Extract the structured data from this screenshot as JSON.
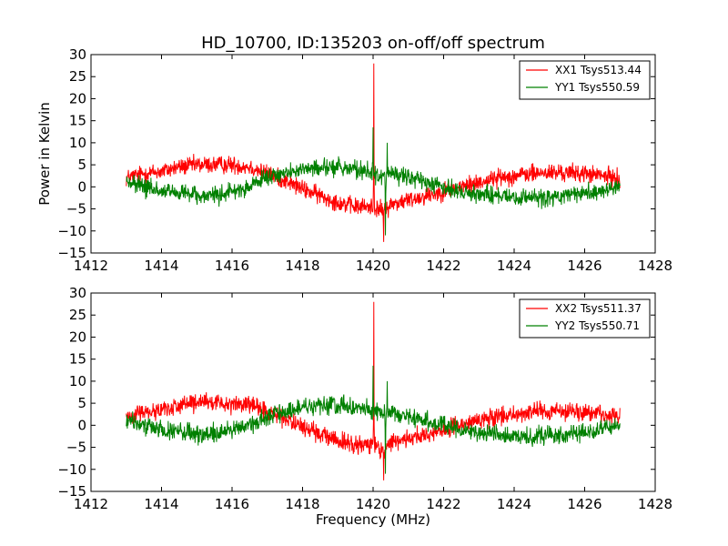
{
  "chart_data": [
    {
      "type": "line",
      "title": "HD_10700, ID:135203 on-off/off spectrum",
      "xlabel": "",
      "ylabel": "Power in Kelvin",
      "xlim": [
        1412,
        1428
      ],
      "ylim": [
        -15,
        30
      ],
      "xticks": [
        1412,
        1414,
        1416,
        1418,
        1420,
        1422,
        1424,
        1426,
        1428
      ],
      "yticks": [
        -15,
        -10,
        -5,
        0,
        5,
        10,
        15,
        20,
        25,
        30
      ],
      "grid": false,
      "legend": "top-right",
      "series": [
        {
          "name": "XX1 Tsys513.44",
          "color": "#ff0000",
          "x": [
            1413.0,
            1413.5,
            1414.0,
            1414.5,
            1415.0,
            1415.5,
            1416.0,
            1416.5,
            1417.0,
            1417.5,
            1418.0,
            1418.5,
            1419.0,
            1419.5,
            1420.0,
            1420.3,
            1420.5,
            1421.0,
            1421.5,
            1422.0,
            1422.5,
            1423.0,
            1423.5,
            1424.0,
            1424.5,
            1425.0,
            1425.5,
            1426.0,
            1426.5,
            1427.0
          ],
          "values": [
            2.0,
            3.0,
            3.5,
            4.5,
            5.0,
            5.0,
            5.0,
            4.5,
            3.0,
            1.5,
            -0.5,
            -2.0,
            -3.5,
            -4.5,
            -4.5,
            -5.5,
            -4.0,
            -3.0,
            -2.0,
            -1.0,
            0.0,
            1.0,
            2.0,
            2.5,
            3.0,
            3.2,
            3.2,
            3.0,
            2.5,
            2.0
          ],
          "noise": 2.0,
          "spikes": [
            [
              1420.02,
              28.0
            ],
            [
              1420.3,
              -12.5
            ]
          ]
        },
        {
          "name": "YY1 Tsys550.59",
          "color": "#008000",
          "x": [
            1413.0,
            1413.5,
            1414.0,
            1414.5,
            1415.0,
            1415.5,
            1416.0,
            1416.5,
            1417.0,
            1417.5,
            1418.0,
            1418.5,
            1419.0,
            1419.5,
            1420.0,
            1420.3,
            1420.5,
            1421.0,
            1421.5,
            1422.0,
            1422.5,
            1423.0,
            1423.5,
            1424.0,
            1424.5,
            1425.0,
            1425.5,
            1426.0,
            1426.5,
            1427.0
          ],
          "values": [
            1.0,
            0.0,
            -1.0,
            -1.5,
            -2.0,
            -2.0,
            -1.0,
            0.0,
            2.0,
            3.0,
            4.0,
            4.5,
            4.5,
            4.0,
            3.0,
            2.5,
            3.0,
            2.0,
            1.0,
            0.0,
            -1.0,
            -1.5,
            -2.0,
            -2.5,
            -2.5,
            -2.5,
            -2.0,
            -1.5,
            -1.0,
            0.5
          ],
          "noise": 2.0,
          "spikes": [
            [
              1420.0,
              13.5
            ],
            [
              1420.4,
              10.0
            ],
            [
              1420.35,
              -11.0
            ]
          ]
        }
      ]
    },
    {
      "type": "line",
      "title": "",
      "xlabel": "Frequency (MHz)",
      "ylabel": "",
      "xlim": [
        1412,
        1428
      ],
      "ylim": [
        -15,
        30
      ],
      "xticks": [
        1412,
        1414,
        1416,
        1418,
        1420,
        1422,
        1424,
        1426,
        1428
      ],
      "yticks": [
        -15,
        -10,
        -5,
        0,
        5,
        10,
        15,
        20,
        25,
        30
      ],
      "grid": false,
      "legend": "top-right",
      "series": [
        {
          "name": "XX2 Tsys511.37",
          "color": "#ff0000",
          "x": [
            1413.0,
            1413.5,
            1414.0,
            1414.5,
            1415.0,
            1415.5,
            1416.0,
            1416.5,
            1417.0,
            1417.5,
            1418.0,
            1418.5,
            1419.0,
            1419.5,
            1420.0,
            1420.3,
            1420.5,
            1421.0,
            1421.5,
            1422.0,
            1422.5,
            1423.0,
            1423.5,
            1424.0,
            1424.5,
            1425.0,
            1425.5,
            1426.0,
            1426.5,
            1427.0
          ],
          "values": [
            2.0,
            3.0,
            3.5,
            4.5,
            5.0,
            5.0,
            5.0,
            4.5,
            3.0,
            1.5,
            -0.5,
            -2.0,
            -3.5,
            -4.5,
            -4.5,
            -5.5,
            -4.0,
            -3.0,
            -2.0,
            -1.0,
            0.0,
            1.0,
            2.0,
            2.5,
            3.0,
            3.2,
            3.2,
            3.0,
            2.5,
            2.0
          ],
          "noise": 2.0,
          "spikes": [
            [
              1420.02,
              28.0
            ],
            [
              1420.3,
              -12.5
            ]
          ]
        },
        {
          "name": "YY2 Tsys550.71",
          "color": "#008000",
          "x": [
            1413.0,
            1413.5,
            1414.0,
            1414.5,
            1415.0,
            1415.5,
            1416.0,
            1416.5,
            1417.0,
            1417.5,
            1418.0,
            1418.5,
            1419.0,
            1419.5,
            1420.0,
            1420.3,
            1420.5,
            1421.0,
            1421.5,
            1422.0,
            1422.5,
            1423.0,
            1423.5,
            1424.0,
            1424.5,
            1425.0,
            1425.5,
            1426.0,
            1426.5,
            1427.0
          ],
          "values": [
            1.0,
            0.0,
            -1.0,
            -1.5,
            -2.0,
            -2.0,
            -1.0,
            0.0,
            2.0,
            3.0,
            4.0,
            4.5,
            4.5,
            4.0,
            3.0,
            2.5,
            3.0,
            2.0,
            1.0,
            0.0,
            -1.0,
            -1.5,
            -2.0,
            -2.5,
            -2.5,
            -2.5,
            -2.0,
            -1.5,
            -1.0,
            0.5
          ],
          "noise": 2.0,
          "spikes": [
            [
              1420.0,
              13.5
            ],
            [
              1420.4,
              10.0
            ],
            [
              1420.35,
              -11.0
            ]
          ]
        }
      ]
    }
  ]
}
